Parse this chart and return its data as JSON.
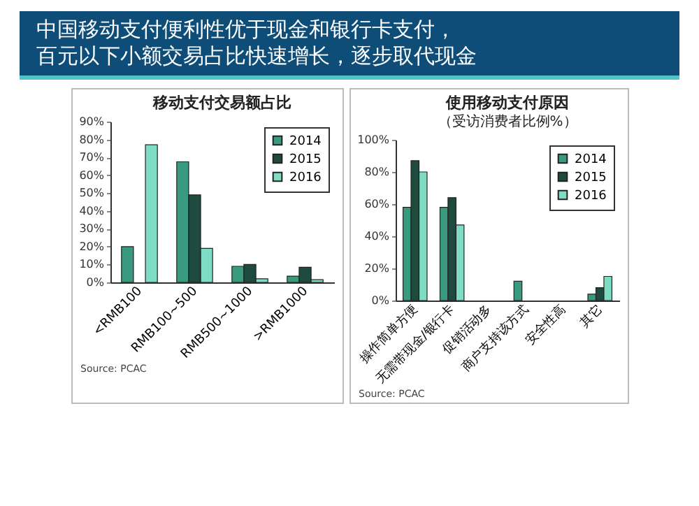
{
  "chart_data": [
    {
      "type": "other",
      "title": "中国移动支付便利性优于现金和银行卡支付，",
      "subtitle": "百元以下小额交易占比快速增长，逐步取代现金"
    },
    {
      "type": "bar",
      "title": "移动支付交易额占比",
      "categories": [
        "<RMB100",
        "RMB100~500",
        "RMB500~1000",
        ">RMB1000"
      ],
      "series": [
        {
          "name": "2014",
          "color": "#3a9a80",
          "values": [
            20,
            67.5,
            9,
            3.5
          ]
        },
        {
          "name": "2015",
          "color": "#1f4a3e",
          "values": [
            null,
            49,
            10,
            8.5
          ]
        },
        {
          "name": "2016",
          "color": "#7fdcc4",
          "values": [
            77,
            19,
            2,
            1.5
          ]
        }
      ],
      "ylim": [
        0,
        90
      ],
      "yticks": [
        {
          "value": 0,
          "label": "0%"
        },
        {
          "value": 10,
          "label": "10%"
        },
        {
          "value": 20,
          "label": "20%"
        },
        {
          "value": 30,
          "label": "30%"
        },
        {
          "value": 40,
          "label": "40%"
        },
        {
          "value": 50,
          "label": "50%"
        },
        {
          "value": 60,
          "label": "60%"
        },
        {
          "value": 70,
          "label": "70%"
        },
        {
          "value": 80,
          "label": "80%"
        },
        {
          "value": 90,
          "label": "90%"
        }
      ],
      "legend": "top right",
      "grid": false,
      "annotations": [
        "Source: PCAC"
      ]
    },
    {
      "type": "bar",
      "title": "使用移动支付原因",
      "subtitle": "（受访消费者比例%）",
      "categories": [
        "操作简单方便",
        "无需带现金/银行卡",
        "促销活动多",
        "商户支持该方式",
        "安全性高",
        "其它"
      ],
      "series": [
        {
          "name": "2014",
          "color": "#3a9a80",
          "values": [
            58,
            58,
            null,
            12,
            null,
            4
          ]
        },
        {
          "name": "2015",
          "color": "#1f4a3e",
          "values": [
            87,
            64,
            null,
            null,
            null,
            8
          ]
        },
        {
          "name": "2016",
          "color": "#7fdcc4",
          "values": [
            80,
            47,
            null,
            null,
            null,
            15
          ]
        }
      ],
      "ylim": [
        0,
        100
      ],
      "yticks": [
        {
          "value": 0,
          "label": "0%"
        },
        {
          "value": 20,
          "label": "20%"
        },
        {
          "value": 40,
          "label": "40%"
        },
        {
          "value": 60,
          "label": "60%"
        },
        {
          "value": 80,
          "label": "80%"
        },
        {
          "value": 100,
          "label": "100%"
        }
      ],
      "legend": "top right",
      "grid": false,
      "annotations": [
        "Source: PCAC"
      ]
    }
  ]
}
